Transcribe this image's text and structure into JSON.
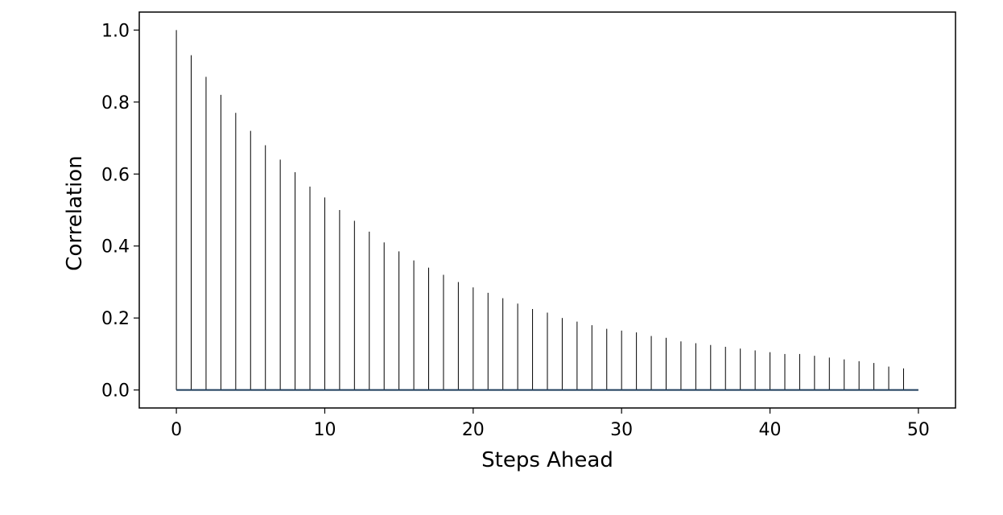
{
  "chart_data": {
    "type": "stem",
    "title": "",
    "xlabel": "Steps Ahead",
    "ylabel": "Correlation",
    "xlim": [
      -2.5,
      52.5
    ],
    "ylim": [
      -0.05,
      1.05
    ],
    "xticks": [
      0,
      10,
      20,
      30,
      40,
      50
    ],
    "xtick_labels": [
      "0",
      "10",
      "20",
      "30",
      "40",
      "50"
    ],
    "yticks": [
      0.0,
      0.2,
      0.4,
      0.6,
      0.8,
      1.0
    ],
    "ytick_labels": [
      "0.0",
      "0.2",
      "0.4",
      "0.6",
      "0.8",
      "1.0"
    ],
    "baseline": 0,
    "grid": false,
    "stem_color": "#000000",
    "baseline_color": "#1f3d5c",
    "x": [
      0,
      1,
      2,
      3,
      4,
      5,
      6,
      7,
      8,
      9,
      10,
      11,
      12,
      13,
      14,
      15,
      16,
      17,
      18,
      19,
      20,
      21,
      22,
      23,
      24,
      25,
      26,
      27,
      28,
      29,
      30,
      31,
      32,
      33,
      34,
      35,
      36,
      37,
      38,
      39,
      40,
      41,
      42,
      43,
      44,
      45,
      46,
      47,
      48,
      49
    ],
    "values": [
      1.0,
      0.93,
      0.87,
      0.82,
      0.77,
      0.72,
      0.68,
      0.64,
      0.605,
      0.565,
      0.535,
      0.5,
      0.47,
      0.44,
      0.41,
      0.385,
      0.36,
      0.34,
      0.32,
      0.3,
      0.285,
      0.27,
      0.255,
      0.24,
      0.225,
      0.215,
      0.2,
      0.19,
      0.18,
      0.17,
      0.165,
      0.16,
      0.15,
      0.145,
      0.135,
      0.13,
      0.125,
      0.12,
      0.115,
      0.11,
      0.105,
      0.1,
      0.1,
      0.095,
      0.09,
      0.085,
      0.08,
      0.075,
      0.065,
      0.06
    ]
  }
}
